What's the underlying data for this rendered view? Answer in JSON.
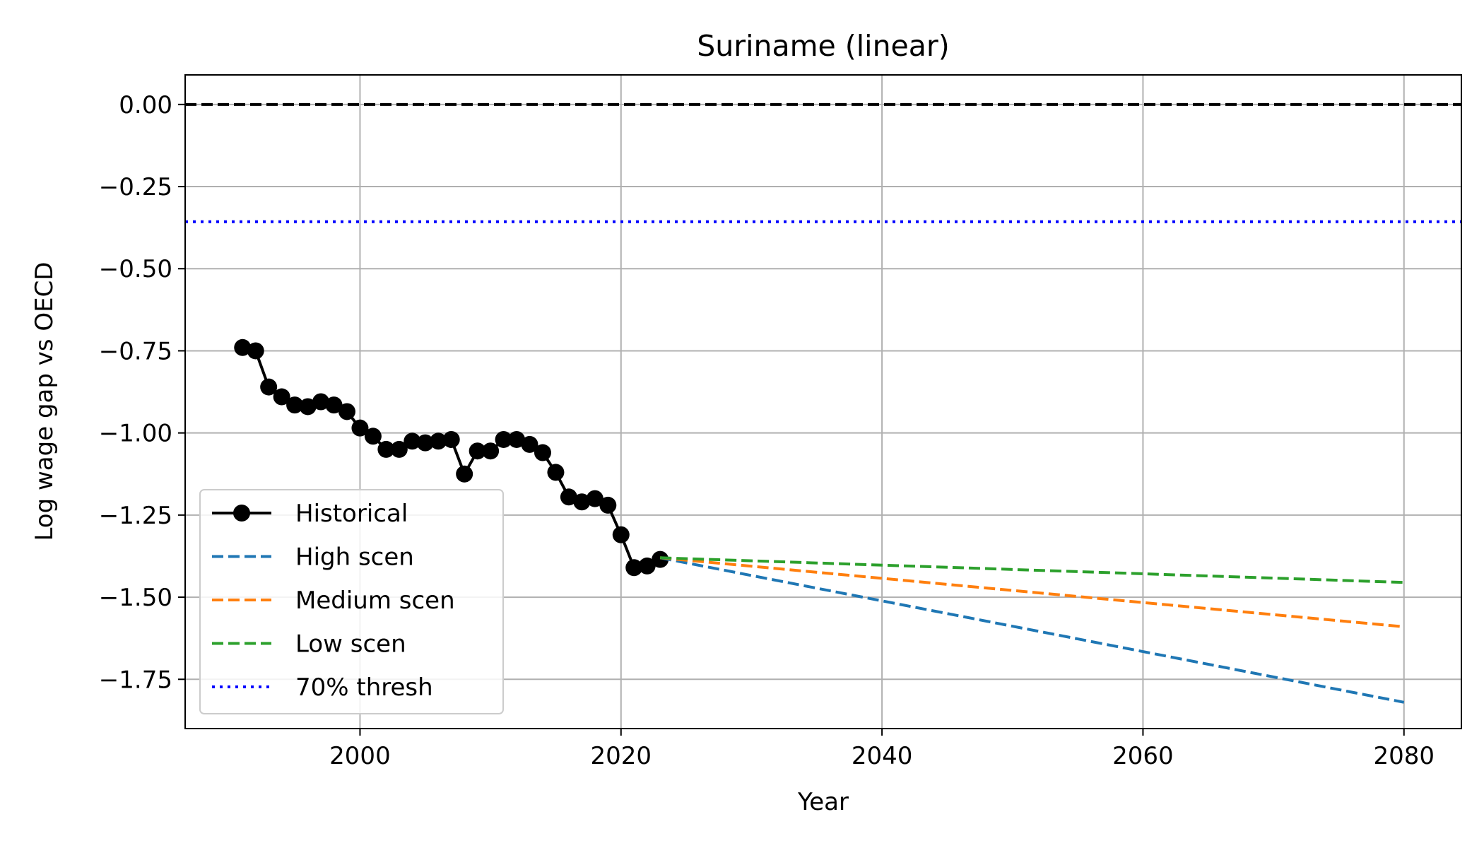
{
  "chart_data": {
    "type": "line",
    "title": "Suriname (linear)",
    "xlabel": "Year",
    "ylabel": "Log wage gap vs OECD",
    "xlim": [
      1986.6,
      2084.4
    ],
    "ylim": [
      -1.9,
      0.09
    ],
    "xticks": [
      2000,
      2020,
      2040,
      2060,
      2080
    ],
    "xtick_labels": [
      "2000",
      "2020",
      "2040",
      "2060",
      "2080"
    ],
    "yticks": [
      0.0,
      -0.25,
      -0.5,
      -0.75,
      -1.0,
      -1.25,
      -1.5,
      -1.75
    ],
    "ytick_labels": [
      "0.00",
      "−0.25",
      "−0.50",
      "−0.75",
      "−1.00",
      "−1.25",
      "−1.50",
      "−1.75"
    ],
    "grid": true,
    "legend_position": "lower-left",
    "series": [
      {
        "name": "Historical",
        "color": "#000000",
        "style": "solid-markers",
        "x": [
          1991,
          1992,
          1993,
          1994,
          1995,
          1996,
          1997,
          1998,
          1999,
          2000,
          2001,
          2002,
          2003,
          2004,
          2005,
          2006,
          2007,
          2008,
          2009,
          2010,
          2011,
          2012,
          2013,
          2014,
          2015,
          2016,
          2017,
          2018,
          2019,
          2020,
          2021,
          2022,
          2023
        ],
        "y": [
          -0.74,
          -0.75,
          -0.86,
          -0.89,
          -0.915,
          -0.92,
          -0.905,
          -0.915,
          -0.935,
          -0.985,
          -1.01,
          -1.05,
          -1.05,
          -1.025,
          -1.03,
          -1.025,
          -1.02,
          -1.125,
          -1.055,
          -1.055,
          -1.02,
          -1.02,
          -1.035,
          -1.06,
          -1.12,
          -1.195,
          -1.21,
          -1.2,
          -1.22,
          -1.31,
          -1.41,
          -1.405,
          -1.385
        ]
      },
      {
        "name": "High scen",
        "color": "#1f77b4",
        "style": "dashed",
        "x": [
          2023,
          2080
        ],
        "y": [
          -1.38,
          -1.82
        ]
      },
      {
        "name": "Medium scen",
        "color": "#ff7f0e",
        "style": "dashed",
        "x": [
          2023,
          2080
        ],
        "y": [
          -1.38,
          -1.59
        ]
      },
      {
        "name": "Low scen",
        "color": "#2ca02c",
        "style": "dashed",
        "x": [
          2023,
          2080
        ],
        "y": [
          -1.38,
          -1.455
        ]
      },
      {
        "name": "70% thresh",
        "color": "#0000ff",
        "style": "dotted",
        "hline": -0.357
      }
    ],
    "reference_line": {
      "y": 0.0,
      "color": "#000000",
      "style": "dashed"
    }
  }
}
